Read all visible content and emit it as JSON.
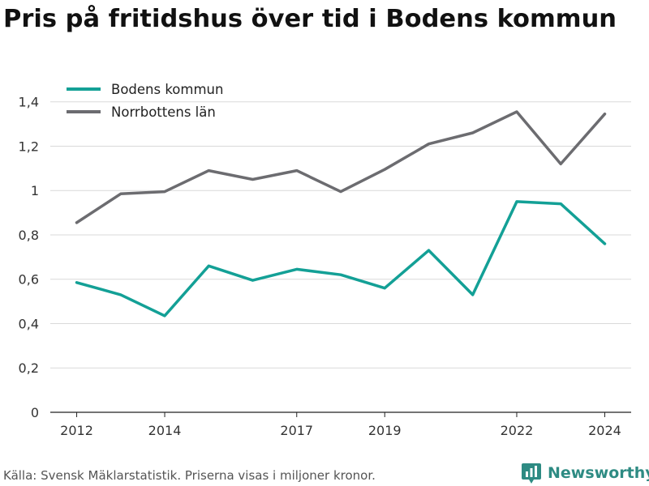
{
  "chart_data": {
    "type": "line",
    "title": "Pris på fritidshus över tid i Bodens kommun",
    "x": [
      2012,
      2013,
      2014,
      2015,
      2016,
      2017,
      2018,
      2019,
      2020,
      2021,
      2022,
      2023,
      2024
    ],
    "xticks": [
      "2012",
      "2014",
      "2017",
      "2019",
      "2022",
      "2024"
    ],
    "ylim": [
      0,
      1.45
    ],
    "yticks": [
      "0",
      "0,2",
      "0,4",
      "0,6",
      "0,8",
      "1",
      "1,2",
      "1,4"
    ],
    "grid": true,
    "legend_position": "top-left",
    "series": [
      {
        "name": "Bodens kommun",
        "color": "#13a096",
        "values": [
          0.585,
          0.53,
          0.435,
          0.66,
          0.595,
          0.645,
          0.62,
          0.56,
          0.73,
          0.53,
          0.95,
          0.94,
          0.76
        ]
      },
      {
        "name": "Norrbottens län",
        "color": "#6c6c70",
        "values": [
          0.855,
          0.985,
          0.995,
          1.09,
          1.05,
          1.09,
          0.995,
          1.095,
          1.21,
          1.26,
          1.355,
          1.12,
          1.345
        ]
      }
    ]
  },
  "footer": {
    "source": "Källa: Svensk Mäklarstatistik. Priserna visas i miljoner kronor.",
    "brand": "Newsworthy"
  },
  "colors": {
    "grid": "#d9d9d9",
    "axis": "#222222",
    "brand": "#2e8b83"
  },
  "icons": {
    "brand": "bar-chart-pin-icon"
  }
}
